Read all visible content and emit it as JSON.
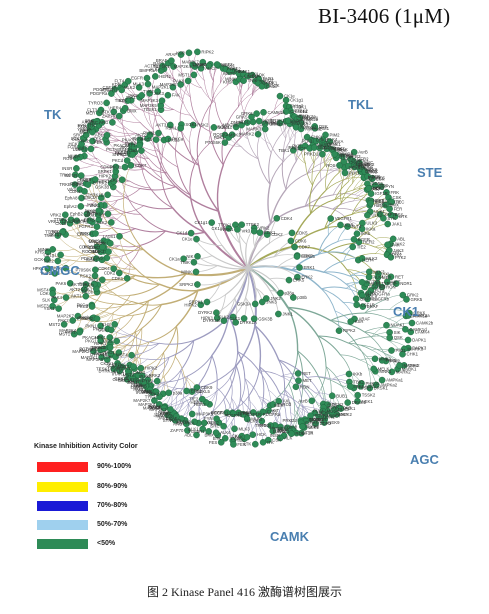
{
  "title": "BI-3406 (1μM)",
  "groups": [
    {
      "name": "TK",
      "color": "#b07f9e"
    },
    {
      "name": "TKL",
      "color": "#b5a6b8"
    },
    {
      "name": "STE",
      "color": "#a5a95a"
    },
    {
      "name": "CK1",
      "color": "#8fb6cc"
    },
    {
      "name": "CMGC",
      "color": "#c2ae76"
    },
    {
      "name": "AGC",
      "color": "#7ea898"
    },
    {
      "name": "CAMK",
      "color": "#9d9cc0"
    }
  ],
  "legend": {
    "title": "Kinase Inhibition Activity Color",
    "items": [
      {
        "label": "90%-100%",
        "color": "#ff2020"
      },
      {
        "label": "80%-90%",
        "color": "#ffee00"
      },
      {
        "label": "70%-80%",
        "color": "#1a1ad6"
      },
      {
        "label": "50%-70%",
        "color": "#9fd0ee"
      },
      {
        "label": "<50%",
        "color": "#2e8b57"
      }
    ]
  },
  "node_color": "#2e8b57",
  "kinase_labels": [
    "FGFR3",
    "FGFR2",
    "EphA6",
    "EphB2",
    "EphA2",
    "EphA8",
    "TRKB",
    "TRKC",
    "MUSK",
    "DDR1",
    "DDR2",
    "IGF1R",
    "INSR",
    "ROS",
    "ALK",
    "LTK",
    "FGR",
    "HCK",
    "BLK",
    "LCK",
    "SRC",
    "YES",
    "FYN",
    "FRK",
    "CSK",
    "ITK",
    "TEC",
    "BTK",
    "BMX",
    "FER",
    "FES",
    "ABL",
    "ARG",
    "ZAP70",
    "SYK",
    "JAK1",
    "JAK2",
    "JAK3",
    "TYK2",
    "FAK",
    "PYK2",
    "RET",
    "MET",
    "RON",
    "AXL",
    "MER",
    "TYRO3",
    "KIT",
    "FLT3",
    "PDGFRa",
    "PDGFRb",
    "CSF1R",
    "VEGFR1",
    "KDR",
    "FLT4",
    "EGFR",
    "HER2",
    "HER4",
    "TIE2",
    "MLK2",
    "MLK3",
    "ALK4",
    "TGFbR1",
    "ALK1",
    "ALK2",
    "BMPR1A",
    "ACTR2",
    "RAF1",
    "BRAF",
    "ARAF",
    "KSR",
    "RIPK2",
    "LRRK2",
    "IRAK4",
    "IRAK1",
    "LIMK1",
    "TESK1",
    "MAP3K5",
    "MAP3K3",
    "MAP2K1",
    "MAP2K2",
    "MAP2K4",
    "MAP2K7",
    "PAK1",
    "PAK2",
    "PAK4",
    "PAK6",
    "MST1",
    "MST2",
    "MST3",
    "MST4",
    "YSK1",
    "SLK",
    "LOK",
    "TAO1",
    "TAO2",
    "HPK1",
    "GCK",
    "KHS",
    "MINK",
    "TNIK",
    "NIK",
    "CK1a",
    "CK1d",
    "CK1e",
    "CK1g1",
    "CK1g3",
    "TTBK1",
    "TTBK2",
    "VRK1",
    "VRK2",
    "Vrk3",
    "CDK1",
    "CDK2",
    "CDK4",
    "CDK5",
    "CDK6",
    "CDK7",
    "CDK9",
    "CDKL5",
    "ERK1",
    "ERK2",
    "ERK5",
    "p38a",
    "p38b",
    "JNK1",
    "JNK2",
    "JNK3",
    "GSK3A",
    "GSK3B",
    "CLK1",
    "CLK2",
    "DYRK1A",
    "DYRK1B",
    "DYRK2",
    "HIPK1",
    "HIPK2",
    "SRPK1",
    "SRPK2",
    "CK2a1",
    "CK2a2",
    "PCTAIRE1",
    "PKACa",
    "PKACb",
    "PKG1",
    "PKG2",
    "PKCa",
    "PKCb",
    "PKCd",
    "PKCe",
    "PKCh",
    "PKCi",
    "PKCz",
    "PKN1",
    "PKN2",
    "AKT1",
    "AKT2",
    "AKT3",
    "SGK1",
    "RSK1",
    "RSK2",
    "MSK1",
    "MSK2",
    "P70S6K",
    "PDK1",
    "ROCK1",
    "ROCK2",
    "MRCKa",
    "DMPK",
    "LATS1",
    "NDR1",
    "GRK2",
    "GRK5",
    "GRK6",
    "CAMK1a",
    "CAMK1d",
    "CAMK2a",
    "CAMK2b",
    "CAMK4",
    "DAPK1",
    "DAPK3",
    "CHK1",
    "CHK2",
    "MARK1",
    "MARK2",
    "MARK3",
    "MARK4",
    "AMPKa1",
    "AMPKa2",
    "BRSK1",
    "NUAK1",
    "SIK",
    "QSK",
    "PIM1",
    "PIM2",
    "PIM3",
    "MNK1",
    "MNK2",
    "MELK",
    "PHKg1",
    "TSSK1",
    "TSSK2",
    "DRAK1",
    "PLK1",
    "PLK3",
    "PLK4",
    "AurA",
    "AurB",
    "AurC",
    "NEK1",
    "NEK2",
    "NEK6",
    "NEK7",
    "NEK9",
    "TTK",
    "WEE1",
    "Haspin",
    "ULK1",
    "ULK2",
    "ULK3",
    "IKKa",
    "IKKb",
    "TBK1",
    "IRE1",
    "PKR",
    "CDC7",
    "BUB1",
    "GCN2",
    "PERK",
    "MOS",
    "WNK1",
    "PRKD1",
    "PRKD2"
  ],
  "caption": "图 2    Kinase Panel 416 激酶谱树图展示"
}
